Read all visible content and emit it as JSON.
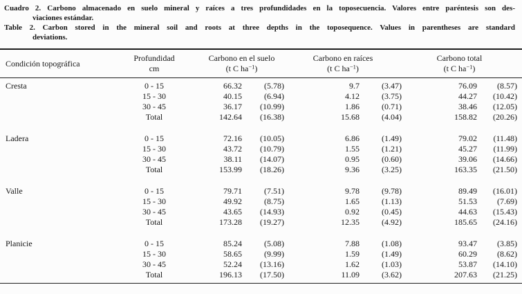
{
  "caption": {
    "es_line1": "Cuadro 2. Carbono almacenado en suelo mineral y raíces a tres profundidades en la toposecuencia. Valores entre paréntesis son des-",
    "es_line2": "viaciones estándar.",
    "en_line1": "Table 2. Carbon stored in the mineral soil and roots at three depths in the toposequence. Values in parentheses are standard",
    "en_line2": "deviations."
  },
  "table": {
    "header": {
      "topography": "Condición topográfica",
      "depth_line1": "Profundidad",
      "depth_line2": "cm",
      "soil": "Carbono en el suelo",
      "roots": "Carbono en raíces",
      "total": "Carbono total",
      "unit_pre": "(t C ha",
      "unit_sup": "−1",
      "unit_post": ")"
    },
    "sections": [
      {
        "name": "Cresta",
        "rows": [
          {
            "depth": "0 - 15",
            "soil": "66.32",
            "soil_sd": "(5.78)",
            "roots": "9.7",
            "roots_sd": "(3.47)",
            "total": "76.09",
            "total_sd": "(8.57)"
          },
          {
            "depth": "15 - 30",
            "soil": "40.15",
            "soil_sd": "(6.94)",
            "roots": "4.12",
            "roots_sd": "(3.75)",
            "total": "44.27",
            "total_sd": "(10.42)"
          },
          {
            "depth": "30 - 45",
            "soil": "36.17",
            "soil_sd": "(10.99)",
            "roots": "1.86",
            "roots_sd": "(0.71)",
            "total": "38.46",
            "total_sd": "(12.05)"
          },
          {
            "depth": "Total",
            "soil": "142.64",
            "soil_sd": "(16.38)",
            "roots": "15.68",
            "roots_sd": "(4.04)",
            "total": "158.82",
            "total_sd": "(20.26)"
          }
        ]
      },
      {
        "name": "Ladera",
        "rows": [
          {
            "depth": "0 - 15",
            "soil": "72.16",
            "soil_sd": "(10.05)",
            "roots": "6.86",
            "roots_sd": "(1.49)",
            "total": "79.02",
            "total_sd": "(11.48)"
          },
          {
            "depth": "15 - 30",
            "soil": "43.72",
            "soil_sd": "(10.79)",
            "roots": "1.55",
            "roots_sd": "(1.21)",
            "total": "45.27",
            "total_sd": "(11.99)"
          },
          {
            "depth": "30 - 45",
            "soil": "38.11",
            "soil_sd": "(14.07)",
            "roots": "0.95",
            "roots_sd": "(0.60)",
            "total": "39.06",
            "total_sd": "(14.66)"
          },
          {
            "depth": "Total",
            "soil": "153.99",
            "soil_sd": "(18.26)",
            "roots": "9.36",
            "roots_sd": "(3.25)",
            "total": "163.35",
            "total_sd": "(21.50)"
          }
        ]
      },
      {
        "name": "Valle",
        "rows": [
          {
            "depth": "0 - 15",
            "soil": "79.71",
            "soil_sd": "(7.51)",
            "roots": "9.78",
            "roots_sd": "(9.78)",
            "total": "89.49",
            "total_sd": "(16.01)"
          },
          {
            "depth": "15 - 30",
            "soil": "49.92",
            "soil_sd": "(8.75)",
            "roots": "1.65",
            "roots_sd": "(1.13)",
            "total": "51.53",
            "total_sd": "(7.69)"
          },
          {
            "depth": "30 - 45",
            "soil": "43.65",
            "soil_sd": "(14.93)",
            "roots": "0.92",
            "roots_sd": "(0.45)",
            "total": "44.63",
            "total_sd": "(15.43)"
          },
          {
            "depth": "Total",
            "soil": "173.28",
            "soil_sd": "(19.27)",
            "roots": "12.35",
            "roots_sd": "(4.92)",
            "total": "185.65",
            "total_sd": "(24.16)"
          }
        ]
      },
      {
        "name": "Planicie",
        "rows": [
          {
            "depth": "0 - 15",
            "soil": "85.24",
            "soil_sd": "(5.08)",
            "roots": "7.88",
            "roots_sd": "(1.08)",
            "total": "93.47",
            "total_sd": "(3.85)"
          },
          {
            "depth": "15 - 30",
            "soil": "58.65",
            "soil_sd": "(9.99)",
            "roots": "1.59",
            "roots_sd": "(1.49)",
            "total": "60.29",
            "total_sd": "(8.62)"
          },
          {
            "depth": "30 - 45",
            "soil": "52.24",
            "soil_sd": "(13.16)",
            "roots": "1.62",
            "roots_sd": "(1.03)",
            "total": "53.87",
            "total_sd": "(14.10)"
          },
          {
            "depth": "Total",
            "soil": "196.13",
            "soil_sd": "(17.50)",
            "roots": "11.09",
            "roots_sd": "(3.62)",
            "total": "207.63",
            "total_sd": "(21.25)"
          }
        ]
      }
    ]
  }
}
